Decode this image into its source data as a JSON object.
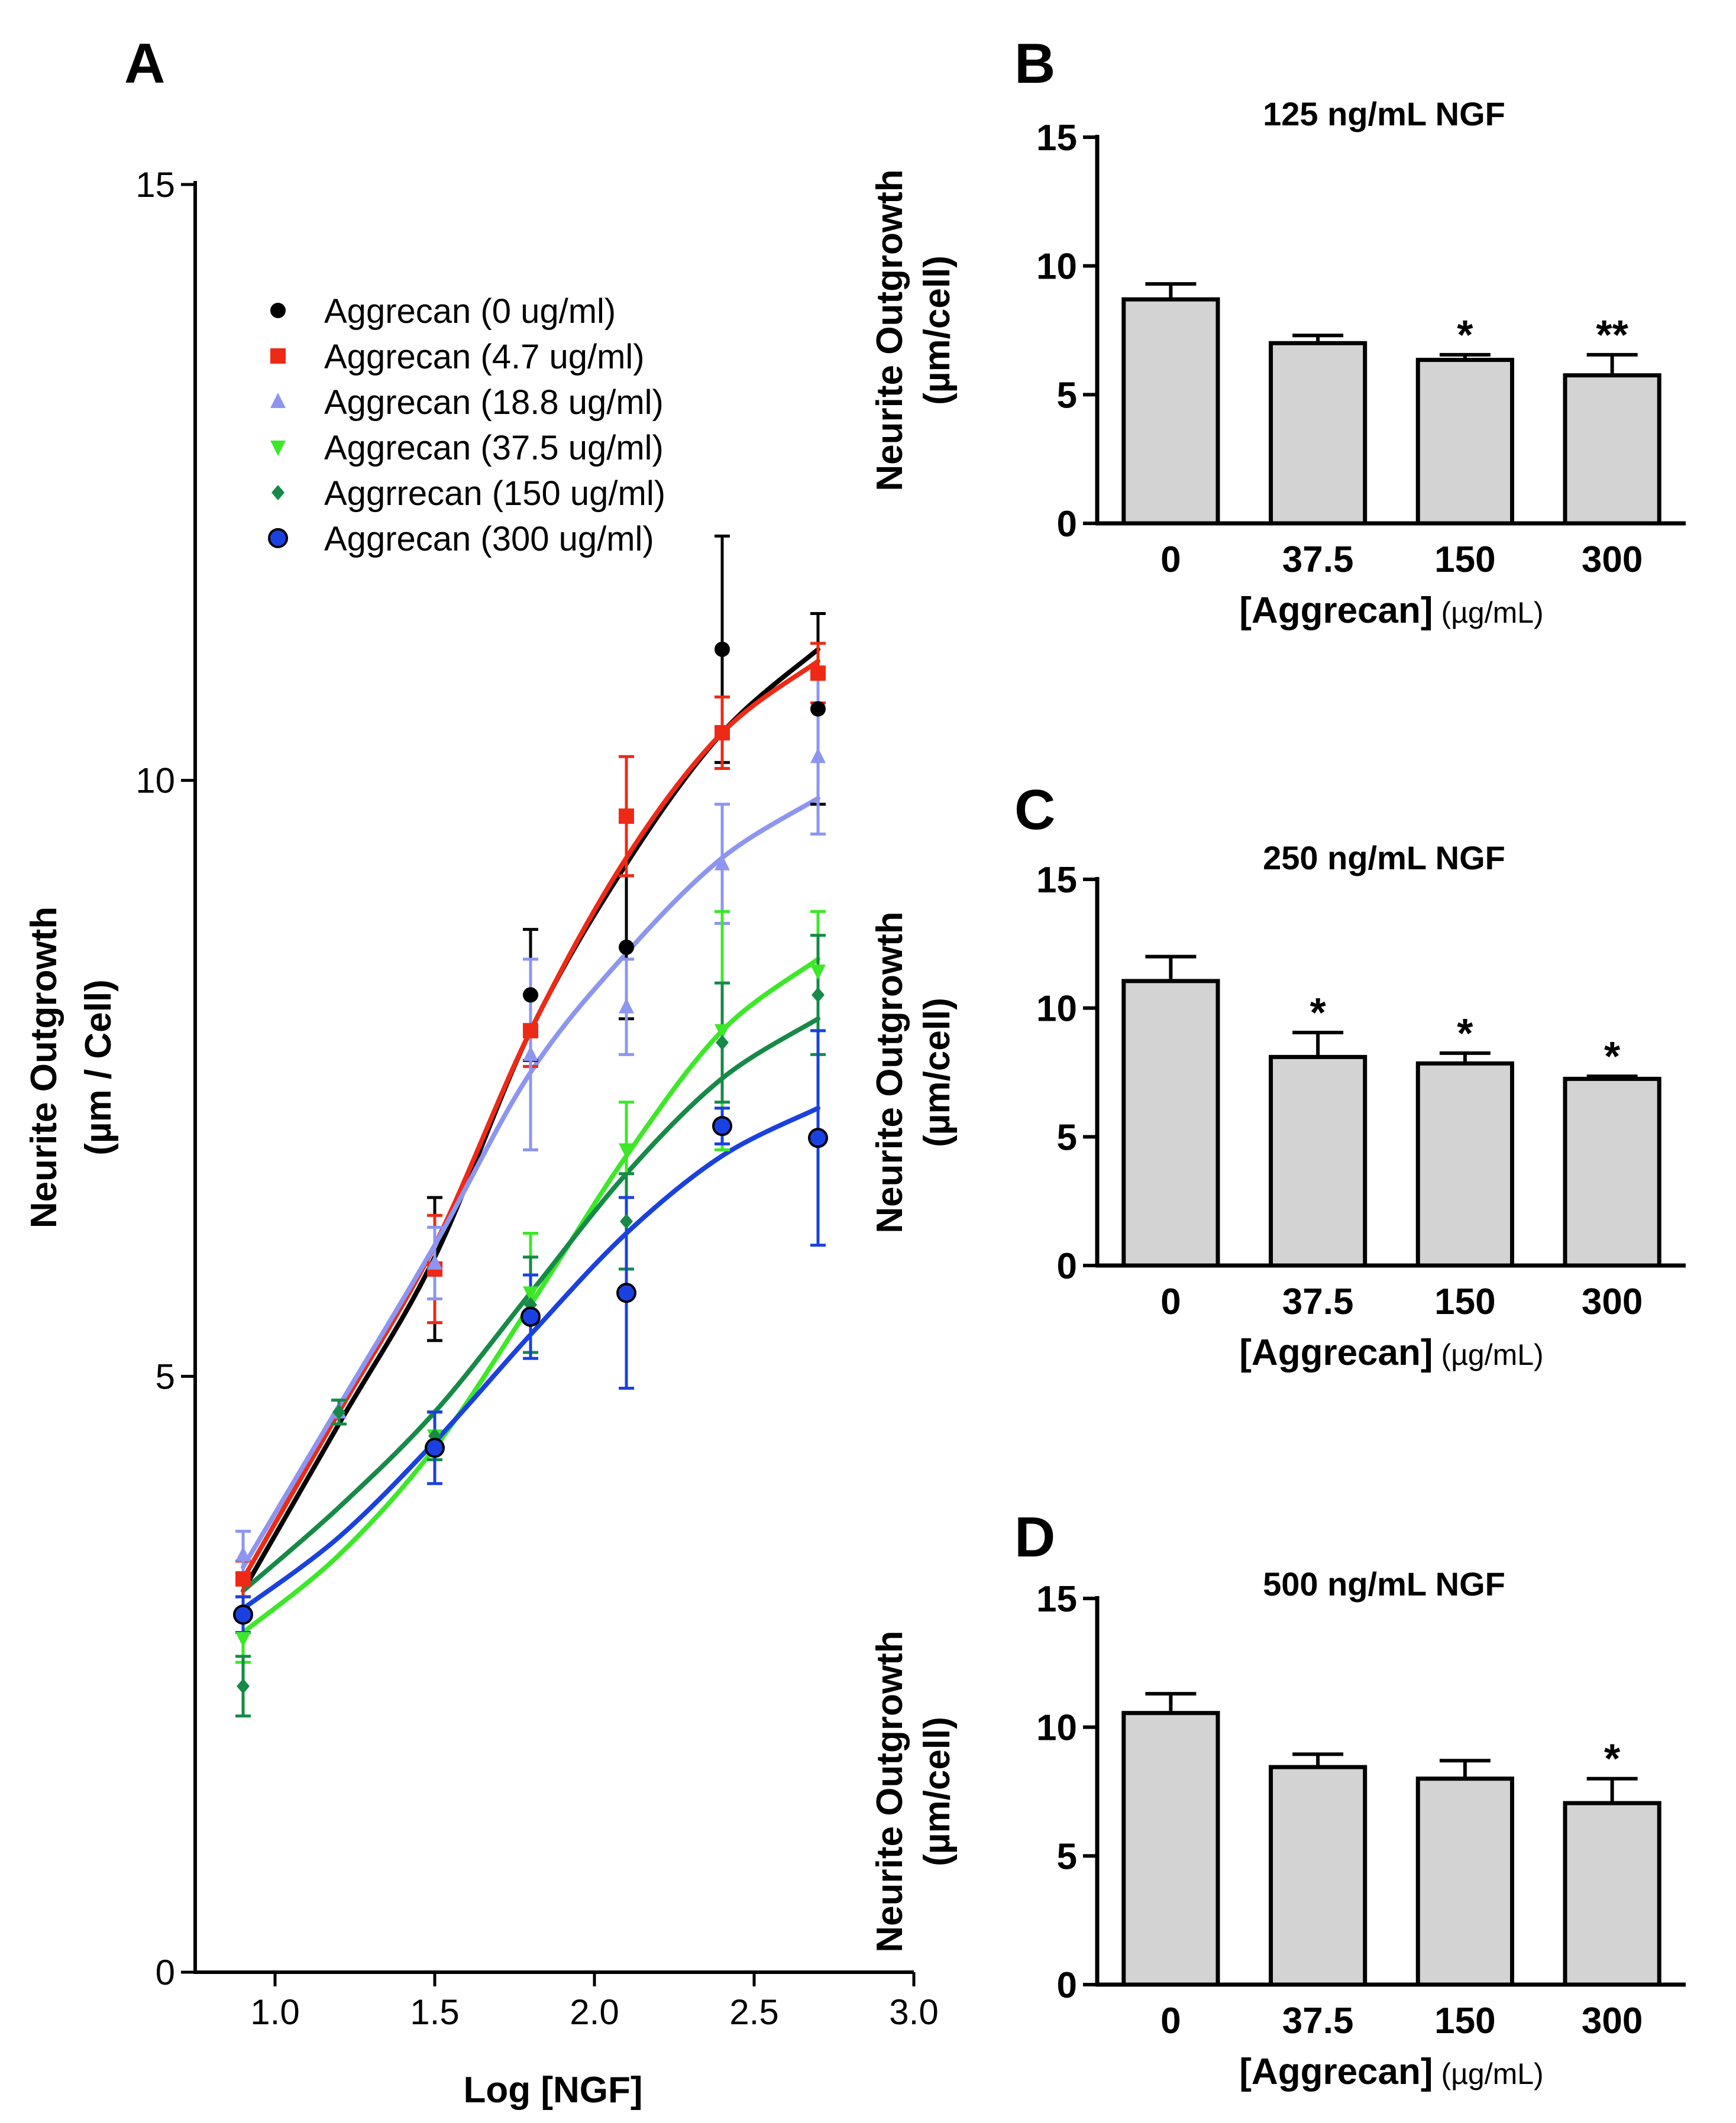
{
  "chart_data": [
    {
      "panel": "A",
      "type": "scatter",
      "xlabel": "Log [NGF]",
      "ylabel_line1": "Neurite Outgrowth",
      "ylabel_line2": "(µm / Cell)",
      "xlim": [
        0.75,
        3.0
      ],
      "ylim": [
        0,
        15
      ],
      "xticks": [
        1.0,
        1.5,
        2.0,
        2.5,
        3.0
      ],
      "xtick_labels": [
        "1.0",
        "1.5",
        "2.0",
        "2.5",
        "3.0"
      ],
      "yticks": [
        0,
        5,
        10,
        15
      ],
      "ytick_labels": [
        "0",
        "5",
        "10",
        "15"
      ],
      "x": [
        0.9,
        1.2,
        1.5,
        1.8,
        2.1,
        2.4,
        2.7
      ],
      "series": [
        {
          "name": "Aggrecan (0 ug/ml)",
          "color": "#000000",
          "marker": "circle",
          "points": [
            [
              0.9,
              3.0
            ],
            [
              1.5,
              5.9
            ],
            [
              1.8,
              8.2
            ],
            [
              2.1,
              8.6
            ],
            [
              2.4,
              11.1
            ],
            [
              2.7,
              10.6
            ]
          ],
          "errors": [
            0.15,
            0.6,
            0.55,
            0.6,
            0.95,
            0.8
          ],
          "curve": [
            [
              0.9,
              3.2
            ],
            [
              1.2,
              4.6
            ],
            [
              1.5,
              6.0
            ],
            [
              1.8,
              7.9
            ],
            [
              2.1,
              9.3
            ],
            [
              2.4,
              10.4
            ],
            [
              2.7,
              11.1
            ]
          ]
        },
        {
          "name": "Aggrecan (4.7 ug/ml)",
          "color": "#ee2a16",
          "marker": "square",
          "points": [
            [
              0.9,
              3.3
            ],
            [
              1.5,
              5.9
            ],
            [
              1.8,
              7.9
            ],
            [
              2.1,
              9.7
            ],
            [
              2.4,
              10.4
            ],
            [
              2.7,
              10.9
            ]
          ],
          "errors": [
            0.15,
            0.45,
            0.3,
            0.5,
            0.3,
            0.25
          ],
          "curve": [
            [
              0.9,
              3.3
            ],
            [
              1.2,
              4.7
            ],
            [
              1.5,
              6.1
            ],
            [
              1.8,
              7.9
            ],
            [
              2.1,
              9.35
            ],
            [
              2.4,
              10.4
            ],
            [
              2.7,
              11.0
            ]
          ]
        },
        {
          "name": "Aggrecan (18.8 ug/ml)",
          "color": "#8c96f0",
          "marker": "triangle-up",
          "points": [
            [
              0.9,
              3.5
            ],
            [
              1.2,
              4.7
            ],
            [
              1.5,
              5.95
            ],
            [
              1.8,
              7.7
            ],
            [
              2.1,
              8.1
            ],
            [
              2.4,
              9.3
            ],
            [
              2.7,
              10.2
            ]
          ],
          "errors": [
            0.2,
            0.1,
            0.3,
            0.8,
            0.4,
            0.5,
            0.65
          ],
          "curve": [
            [
              0.9,
              3.4
            ],
            [
              1.2,
              4.75
            ],
            [
              1.5,
              6.1
            ],
            [
              1.8,
              7.55
            ],
            [
              2.1,
              8.55
            ],
            [
              2.4,
              9.35
            ],
            [
              2.7,
              9.85
            ]
          ]
        },
        {
          "name": "Aggrecan (37.5 ug/ml)",
          "color": "#3ce827",
          "marker": "triangle-down",
          "points": [
            [
              0.9,
              2.8
            ],
            [
              1.5,
              4.5
            ],
            [
              1.8,
              5.7
            ],
            [
              2.1,
              6.9
            ],
            [
              2.4,
              7.9
            ],
            [
              2.7,
              8.4
            ]
          ],
          "errors": [
            0.2,
            0.2,
            0.5,
            0.4,
            1.0,
            0.5
          ],
          "curve": [
            [
              0.9,
              2.85
            ],
            [
              1.2,
              3.5
            ],
            [
              1.5,
              4.4
            ],
            [
              1.8,
              5.6
            ],
            [
              2.1,
              6.85
            ],
            [
              2.4,
              7.9
            ],
            [
              2.7,
              8.5
            ]
          ]
        },
        {
          "name": "Aggrrecan (150 ug/ml)",
          "color": "#168a46",
          "marker": "diamond",
          "points": [
            [
              0.9,
              2.4
            ],
            [
              1.2,
              4.7
            ],
            [
              1.5,
              4.5
            ],
            [
              1.8,
              5.6
            ],
            [
              2.1,
              6.3
            ],
            [
              2.4,
              7.8
            ],
            [
              2.7,
              8.2
            ]
          ],
          "errors": [
            0.25,
            0.1,
            0.2,
            0.4,
            0.4,
            0.5,
            0.5
          ],
          "curve": [
            [
              0.9,
              3.2
            ],
            [
              1.2,
              3.9
            ],
            [
              1.5,
              4.7
            ],
            [
              1.8,
              5.7
            ],
            [
              2.1,
              6.7
            ],
            [
              2.4,
              7.5
            ],
            [
              2.7,
              8.0
            ]
          ]
        },
        {
          "name": "Aggrecan (300 ug/ml)",
          "color": "#1a41e0",
          "marker": "circle-outlined",
          "points": [
            [
              0.9,
              3.0
            ],
            [
              1.5,
              4.4
            ],
            [
              1.8,
              5.5
            ],
            [
              2.1,
              5.7
            ],
            [
              2.4,
              7.1
            ],
            [
              2.7,
              7.0
            ]
          ],
          "errors": [
            0.15,
            0.3,
            0.35,
            0.8,
            0.15,
            0.9
          ],
          "curve": [
            [
              0.9,
              3.05
            ],
            [
              1.2,
              3.65
            ],
            [
              1.5,
              4.45
            ],
            [
              1.8,
              5.35
            ],
            [
              2.1,
              6.2
            ],
            [
              2.4,
              6.85
            ],
            [
              2.7,
              7.25
            ]
          ]
        }
      ]
    },
    {
      "panel": "B",
      "type": "bar",
      "title": "125 ng/mL NGF",
      "ylabel_line1": "Neurite Outgrowth",
      "ylabel_line2": "(µm/cell)",
      "xlabel_main": "[Aggrecan]",
      "xlabel_unit": " (µg/mL)",
      "categories": [
        "0",
        "37.5",
        "150",
        "300"
      ],
      "values": [
        8.7,
        7.0,
        6.35,
        5.75
      ],
      "errors": [
        0.6,
        0.3,
        0.2,
        0.8
      ],
      "significance": [
        "",
        "",
        "*",
        "**"
      ],
      "ylim": [
        0,
        15
      ],
      "yticks": [
        0,
        5,
        10,
        15
      ],
      "ytick_labels": [
        "0",
        "5",
        "10",
        "15"
      ]
    },
    {
      "panel": "C",
      "type": "bar",
      "title": "250 ng/mL NGF",
      "ylabel_line1": "Neurite Outgrowth",
      "ylabel_line2": "(µm/cell)",
      "xlabel_main": "[Aggrecan]",
      "xlabel_unit": " (µg/mL)",
      "categories": [
        "0",
        "37.5",
        "150",
        "300"
      ],
      "values": [
        11.05,
        8.1,
        7.85,
        7.25
      ],
      "errors": [
        0.95,
        0.95,
        0.4,
        0.1
      ],
      "significance": [
        "",
        "*",
        "*",
        "*"
      ],
      "ylim": [
        0,
        15
      ],
      "yticks": [
        0,
        5,
        10,
        15
      ],
      "ytick_labels": [
        "0",
        "5",
        "10",
        "15"
      ]
    },
    {
      "panel": "D",
      "type": "bar",
      "title": "500 ng/mL NGF",
      "ylabel_line1": "Neurite Outgrowth",
      "ylabel_line2": "(µm/cell)",
      "xlabel_main": "[Aggrecan]",
      "xlabel_unit": " (µg/mL)",
      "categories": [
        "0",
        "37.5",
        "150",
        "300"
      ],
      "values": [
        10.55,
        8.45,
        8.0,
        7.05
      ],
      "errors": [
        0.75,
        0.5,
        0.7,
        0.95
      ],
      "significance": [
        "",
        "",
        "",
        "*"
      ],
      "ylim": [
        0,
        15
      ],
      "yticks": [
        0,
        5,
        10,
        15
      ],
      "ytick_labels": [
        "0",
        "5",
        "10",
        "15"
      ]
    }
  ],
  "style": {
    "bar_fill": "#d3d3d3",
    "axis_color": "#000000"
  }
}
